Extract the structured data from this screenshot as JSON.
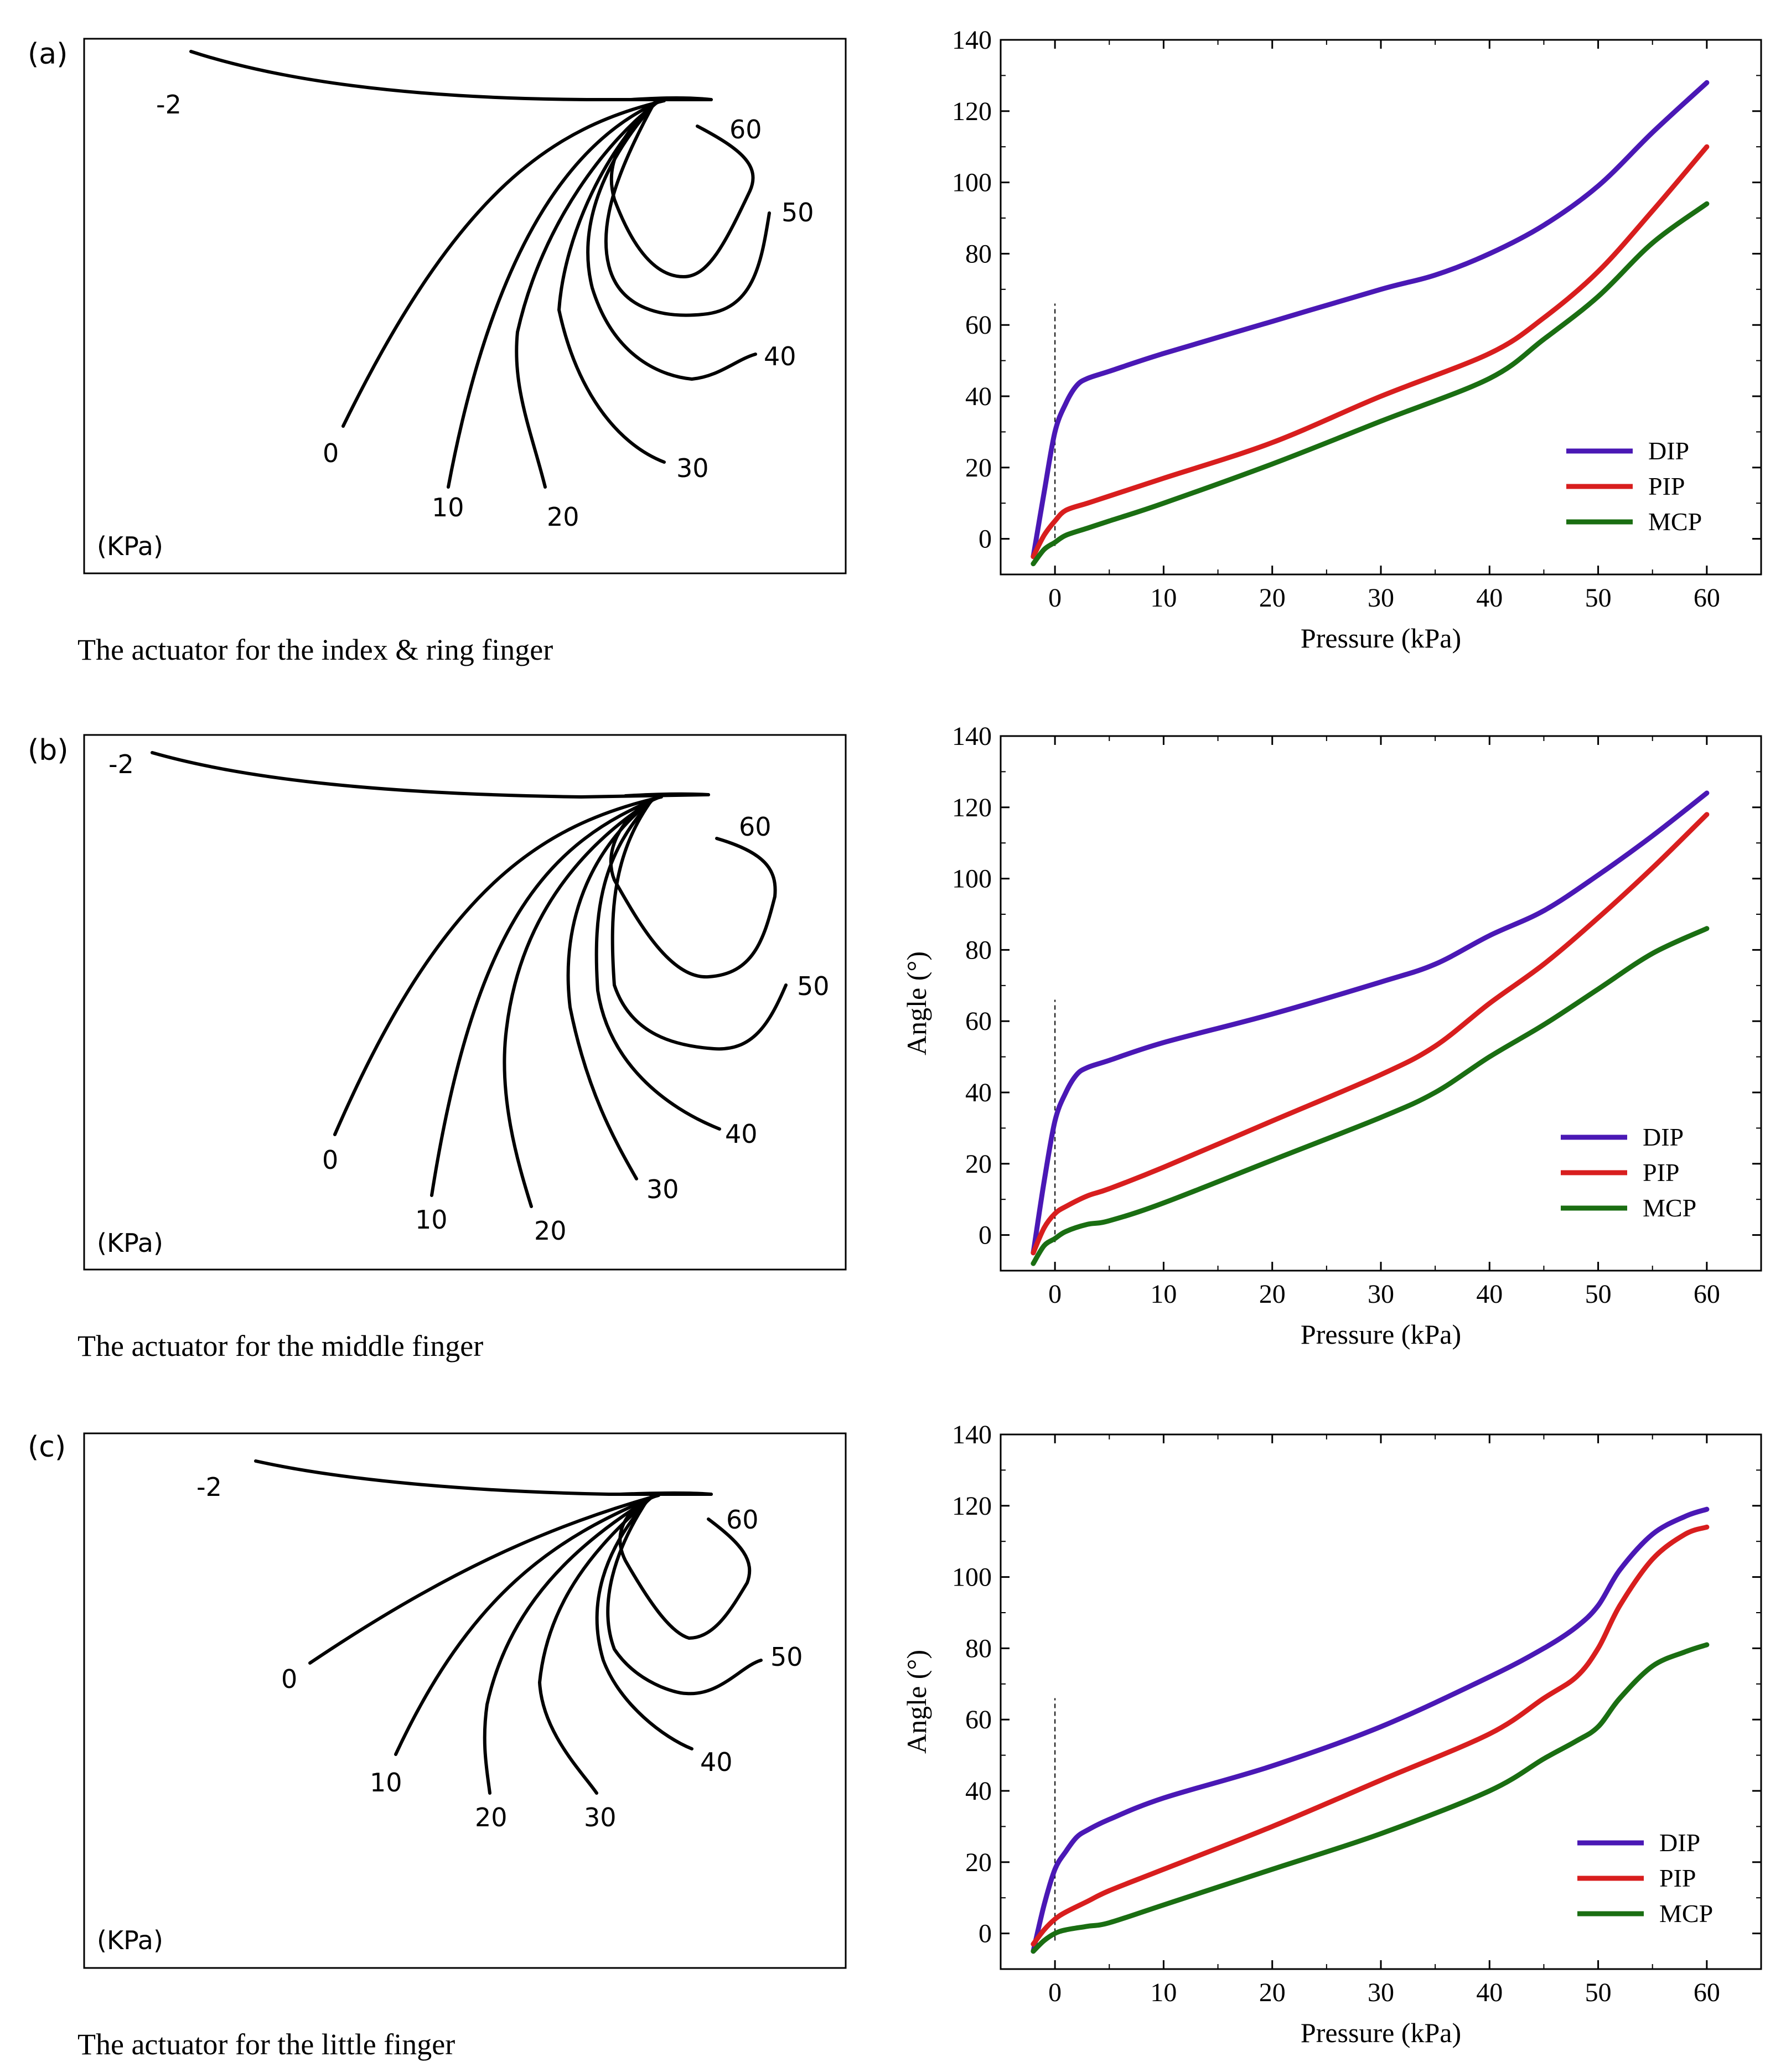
{
  "colors": {
    "DIP": "#4a18b5",
    "PIP": "#d81e1e",
    "MCP": "#1a6e12",
    "frame": "#000000"
  },
  "panels": [
    {
      "label": "(a)",
      "caption": "The actuator for the index & ring finger",
      "unit": "(KPa)",
      "shape_labels": [
        "-2",
        "0",
        "10",
        "20",
        "30",
        "40",
        "50",
        "60"
      ]
    },
    {
      "label": "(b)",
      "caption": "The actuator for the middle finger",
      "unit": "(KPa)",
      "shape_labels": [
        "-2",
        "0",
        "10",
        "20",
        "30",
        "40",
        "50",
        "60"
      ]
    },
    {
      "label": "(c)",
      "caption": "The actuator for the little finger",
      "unit": "(KPa)",
      "shape_labels": [
        "-2",
        "0",
        "10",
        "20",
        "30",
        "40",
        "50",
        "60"
      ]
    }
  ],
  "chart_data": [
    {
      "type": "line",
      "title": "",
      "xlabel": "Pressure (kPa)",
      "ylabel": "",
      "xlim": [
        -5,
        65
      ],
      "ylim": [
        -10,
        140
      ],
      "xticks": [
        0,
        10,
        20,
        30,
        40,
        50,
        60
      ],
      "yticks": [
        0,
        20,
        40,
        60,
        80,
        100,
        120,
        140
      ],
      "legend_position": "bottom-right",
      "vline_x": 0,
      "series": [
        {
          "name": "DIP",
          "x": [
            -2,
            -1,
            0,
            1,
            2,
            3,
            5,
            10,
            20,
            30,
            35,
            40,
            45,
            50,
            55,
            60
          ],
          "y": [
            -5,
            13,
            30,
            38,
            43,
            45,
            47,
            52,
            61,
            70,
            74,
            80,
            88,
            99,
            114,
            128
          ]
        },
        {
          "name": "PIP",
          "x": [
            -2,
            -1,
            0,
            1,
            3,
            5,
            10,
            20,
            30,
            40,
            45,
            50,
            55,
            60
          ],
          "y": [
            -5,
            1,
            5,
            8,
            10,
            12,
            17,
            27,
            40,
            52,
            62,
            75,
            92,
            110
          ]
        },
        {
          "name": "MCP",
          "x": [
            -2,
            -1,
            0,
            1,
            3,
            5,
            10,
            20,
            30,
            40,
            45,
            50,
            55,
            60
          ],
          "y": [
            -7,
            -3,
            -1,
            1,
            3,
            5,
            10,
            21,
            33,
            45,
            56,
            68,
            83,
            94
          ]
        }
      ]
    },
    {
      "type": "line",
      "title": "",
      "xlabel": "Pressure (kPa)",
      "ylabel": "Angle (°)",
      "xlim": [
        -5,
        65
      ],
      "ylim": [
        -10,
        140
      ],
      "xticks": [
        0,
        10,
        20,
        30,
        40,
        50,
        60
      ],
      "yticks": [
        0,
        20,
        40,
        60,
        80,
        100,
        120,
        140
      ],
      "legend_position": "bottom-right",
      "vline_x": 0,
      "series": [
        {
          "name": "DIP",
          "x": [
            -2,
            -1,
            0,
            1,
            2,
            3,
            5,
            10,
            20,
            30,
            35,
            40,
            45,
            50,
            55,
            60
          ],
          "y": [
            -5,
            15,
            32,
            40,
            45,
            47,
            49,
            54,
            62,
            71,
            76,
            84,
            91,
            101,
            112,
            124
          ]
        },
        {
          "name": "PIP",
          "x": [
            -2,
            -1,
            0,
            1,
            3,
            5,
            10,
            20,
            30,
            35,
            40,
            45,
            50,
            55,
            60
          ],
          "y": [
            -5,
            2,
            6,
            8,
            11,
            13,
            19,
            32,
            45,
            53,
            65,
            76,
            89,
            103,
            118
          ]
        },
        {
          "name": "MCP",
          "x": [
            -2,
            -1,
            0,
            1,
            3,
            5,
            10,
            20,
            30,
            35,
            40,
            45,
            50,
            55,
            60
          ],
          "y": [
            -8,
            -3,
            -1,
            1,
            3,
            4,
            9,
            21,
            33,
            40,
            50,
            59,
            69,
            79,
            86
          ]
        }
      ]
    },
    {
      "type": "line",
      "title": "",
      "xlabel": "Pressure (kPa)",
      "ylabel": "Angle (°)",
      "xlim": [
        -5,
        65
      ],
      "ylim": [
        -10,
        140
      ],
      "xticks": [
        0,
        10,
        20,
        30,
        40,
        50,
        60
      ],
      "yticks": [
        0,
        20,
        40,
        60,
        80,
        100,
        120,
        140
      ],
      "legend_position": "bottom-right",
      "vline_x": 0,
      "series": [
        {
          "name": "DIP",
          "x": [
            -2,
            -1,
            0,
            1,
            2,
            3,
            5,
            10,
            20,
            30,
            40,
            45,
            48,
            50,
            52,
            55,
            58,
            60
          ],
          "y": [
            -5,
            8,
            18,
            23,
            27,
            29,
            32,
            38,
            47,
            58,
            72,
            80,
            86,
            92,
            102,
            112,
            117,
            119
          ]
        },
        {
          "name": "PIP",
          "x": [
            -2,
            -1,
            0,
            1,
            3,
            5,
            10,
            20,
            30,
            40,
            45,
            48,
            50,
            52,
            55,
            58,
            60
          ],
          "y": [
            -3,
            1,
            4,
            6,
            9,
            12,
            18,
            30,
            43,
            56,
            66,
            72,
            80,
            92,
            105,
            112,
            114
          ]
        },
        {
          "name": "MCP",
          "x": [
            -2,
            -1,
            0,
            1,
            3,
            5,
            10,
            20,
            30,
            40,
            45,
            48,
            50,
            52,
            55,
            58,
            60
          ],
          "y": [
            -5,
            -2,
            0,
            1,
            2,
            3,
            8,
            18,
            28,
            40,
            49,
            54,
            58,
            66,
            75,
            79,
            81
          ]
        }
      ]
    }
  ]
}
